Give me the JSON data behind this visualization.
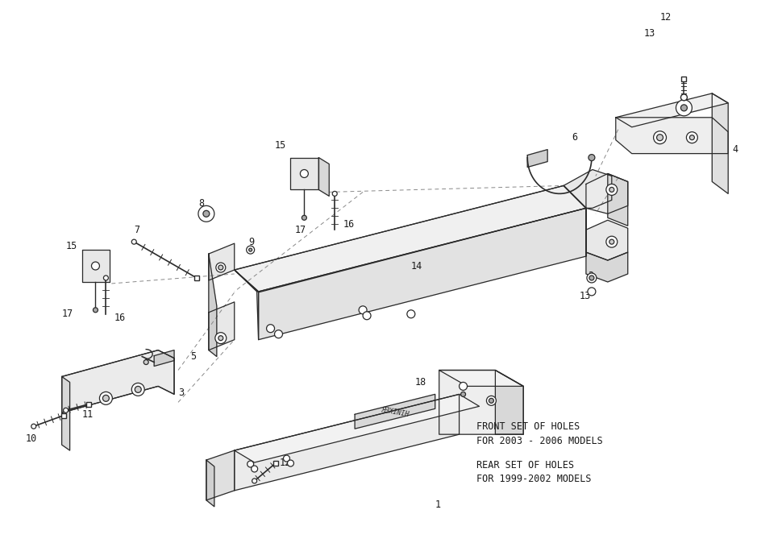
{
  "bg_color": "#ffffff",
  "lc": "#2a2a2a",
  "lw": 0.9,
  "tc": "#1a1a1a",
  "ff": "monospace",
  "fs": 8.5,
  "ann1": "FRONT SET OF HOLES",
  "ann2": "FOR 2003 - 2006 MODELS",
  "ann3": "REAR SET OF HOLES",
  "ann4": "FOR 1999-2002 MODELS"
}
